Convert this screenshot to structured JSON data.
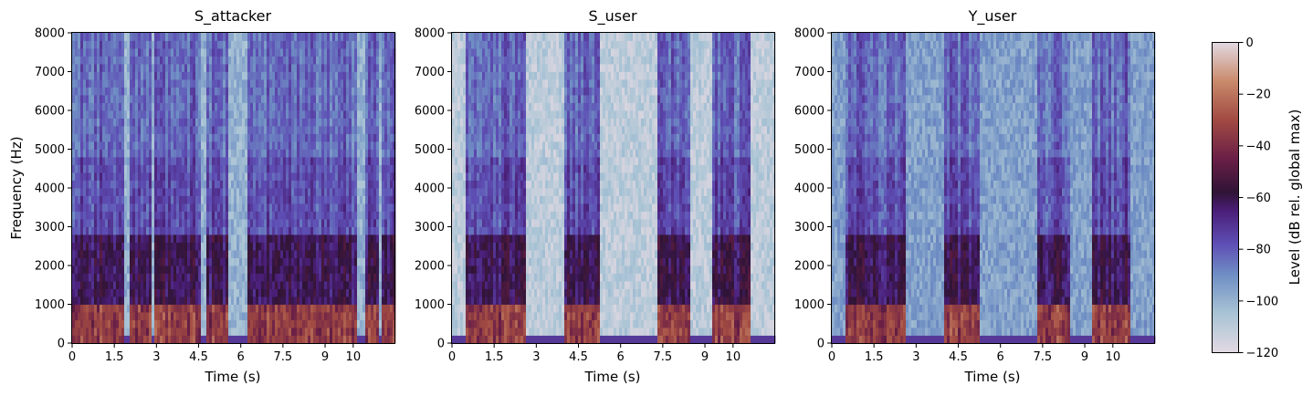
{
  "chart_data": [
    {
      "type": "heatmap",
      "title": "S_attacker",
      "xlabel": "Time (s)",
      "ylabel": "Frequency (Hz)",
      "xlim": [
        0,
        11.5
      ],
      "ylim": [
        0,
        8000
      ],
      "xticks": [
        0,
        1.5,
        3,
        4.5,
        6,
        7.5,
        9,
        10
      ],
      "xtick_labels": [
        "0",
        "1.5",
        "3",
        "4.5",
        "6",
        "7.5",
        "9",
        "10"
      ],
      "yticks": [
        0,
        1000,
        2000,
        3000,
        4000,
        5000,
        6000,
        7000,
        8000
      ],
      "ytick_labels": [
        "0",
        "1000",
        "2000",
        "3000",
        "4000",
        "5000",
        "6000",
        "7000",
        "8000"
      ],
      "speech_segments_s": [
        [
          0.0,
          1.85
        ],
        [
          2.0,
          2.8
        ],
        [
          2.95,
          4.6
        ],
        [
          4.75,
          5.6
        ],
        [
          6.2,
          10.1
        ],
        [
          10.4,
          10.9
        ],
        [
          11.05,
          11.5
        ]
      ],
      "silence_floor_db": -100
    },
    {
      "type": "heatmap",
      "title": "S_user",
      "xlabel": "Time (s)",
      "ylabel": "",
      "xlim": [
        0,
        11.5
      ],
      "ylim": [
        0,
        8000
      ],
      "xticks": [
        0,
        1.5,
        3,
        4.5,
        6,
        7.5,
        9,
        10
      ],
      "xtick_labels": [
        "0",
        "1.5",
        "3",
        "4.5",
        "6",
        "7.5",
        "9",
        "10"
      ],
      "yticks": [
        0,
        1000,
        2000,
        3000,
        4000,
        5000,
        6000,
        7000,
        8000
      ],
      "ytick_labels": [
        "0",
        "1000",
        "2000",
        "3000",
        "4000",
        "5000",
        "6000",
        "7000",
        "8000"
      ],
      "speech_segments_s": [
        [
          0.5,
          2.6
        ],
        [
          4.0,
          5.3
        ],
        [
          7.3,
          8.5
        ],
        [
          9.3,
          10.6
        ]
      ],
      "silence_floor_db": -110
    },
    {
      "type": "heatmap",
      "title": "Y_user",
      "xlabel": "Time (s)",
      "ylabel": "",
      "xlim": [
        0,
        11.5
      ],
      "ylim": [
        0,
        8000
      ],
      "xticks": [
        0,
        1.5,
        3,
        4.5,
        6,
        7.5,
        9,
        10
      ],
      "xtick_labels": [
        "0",
        "1.5",
        "3",
        "4.5",
        "6",
        "7.5",
        "9",
        "10"
      ],
      "yticks": [
        0,
        1000,
        2000,
        3000,
        4000,
        5000,
        6000,
        7000,
        8000
      ],
      "ytick_labels": [
        "0",
        "1000",
        "2000",
        "3000",
        "4000",
        "5000",
        "6000",
        "7000",
        "8000"
      ],
      "speech_segments_s": [
        [
          0.5,
          2.6
        ],
        [
          4.0,
          5.3
        ],
        [
          7.3,
          8.5
        ],
        [
          9.3,
          10.6
        ]
      ],
      "silence_floor_db": -95
    }
  ],
  "colorbar": {
    "label": "Level (dB rel. global max)",
    "colormap": "twilight",
    "range": [
      -120,
      0
    ],
    "ticks": [
      0,
      -20,
      -40,
      -60,
      -80,
      -100,
      -120
    ],
    "tick_labels": [
      "0",
      "−20",
      "−40",
      "−60",
      "−80",
      "−100",
      "−120"
    ],
    "stops": [
      {
        "db": -120,
        "color": "#e2d9e2"
      },
      {
        "db": -105,
        "color": "#a9c4d5"
      },
      {
        "db": -90,
        "color": "#6f8fc4"
      },
      {
        "db": -78,
        "color": "#5e4fb5"
      },
      {
        "db": -65,
        "color": "#4a1e77"
      },
      {
        "db": -58,
        "color": "#2f1436"
      },
      {
        "db": -45,
        "color": "#6b1f47"
      },
      {
        "db": -30,
        "color": "#a14a42"
      },
      {
        "db": -15,
        "color": "#c98a6b"
      },
      {
        "db": 0,
        "color": "#e2d9e2"
      }
    ]
  }
}
